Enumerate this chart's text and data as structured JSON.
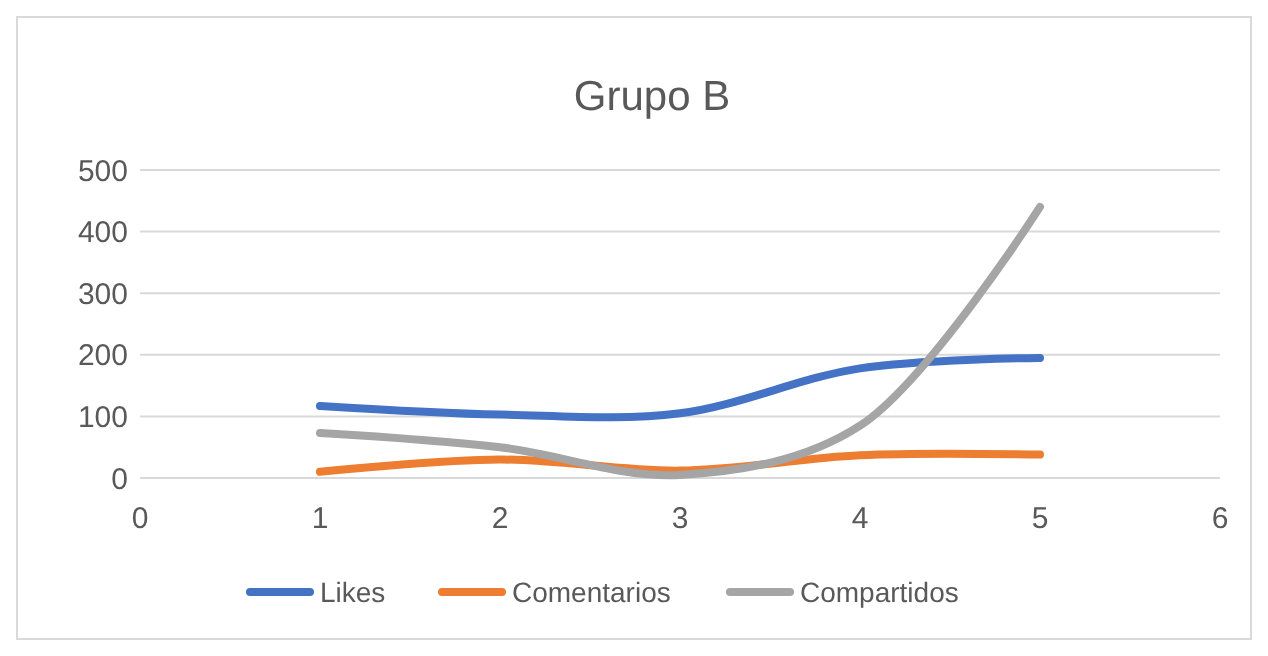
{
  "chart_data": {
    "type": "line",
    "title": "Grupo B",
    "x": [
      1,
      2,
      3,
      4,
      5
    ],
    "xlim": [
      0,
      6
    ],
    "xticks": [
      0,
      1,
      2,
      3,
      4,
      5,
      6
    ],
    "ylim": [
      0,
      500
    ],
    "yticks": [
      0,
      100,
      200,
      300,
      400,
      500
    ],
    "grid": "y",
    "legend": "bottom",
    "marker": "none",
    "line_style": "solid",
    "series": [
      {
        "name": "Likes",
        "color": "#4472c4",
        "values": [
          117,
          103,
          105,
          178,
          195
        ]
      },
      {
        "name": "Comentarios",
        "color": "#ed7d31",
        "values": [
          10,
          30,
          12,
          37,
          38
        ]
      },
      {
        "name": "Compartidos",
        "color": "#a5a5a5",
        "values": [
          73,
          50,
          5,
          85,
          440
        ]
      }
    ]
  }
}
